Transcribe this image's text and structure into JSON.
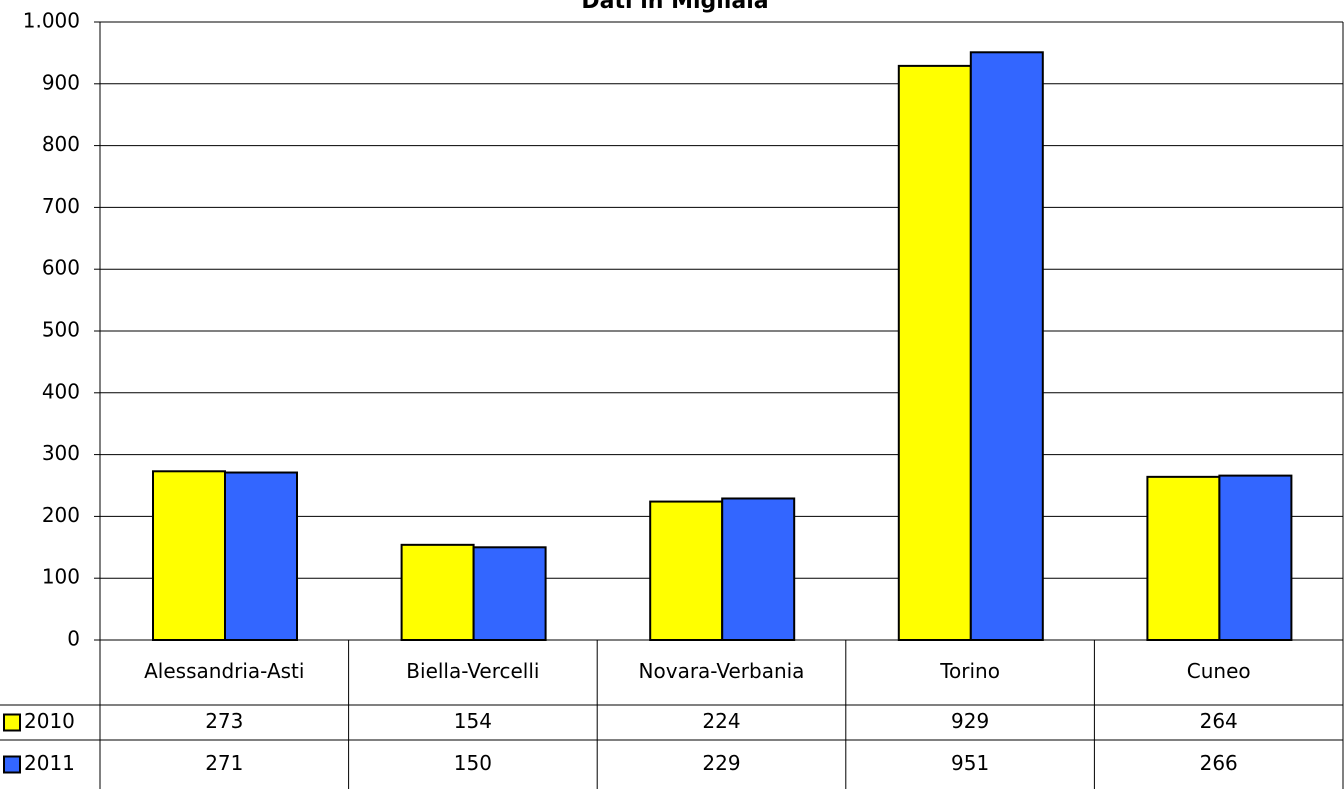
{
  "chart_data": {
    "type": "bar",
    "title": "Dati in Migliaia",
    "categories": [
      "Alessandria-Asti",
      "Biella-Vercelli",
      "Novara-Verbania",
      "Torino",
      "Cuneo"
    ],
    "series": [
      {
        "name": "2010",
        "color": "#ffff00",
        "values": [
          273,
          154,
          224,
          929,
          264
        ]
      },
      {
        "name": "2011",
        "color": "#3366ff",
        "values": [
          271,
          150,
          229,
          951,
          266
        ]
      }
    ],
    "ylim": [
      0,
      1000
    ],
    "yticks": [
      0,
      100,
      200,
      300,
      400,
      500,
      600,
      700,
      800,
      900,
      {
        "value": 1000,
        "label": "1.000"
      }
    ],
    "grid": true
  }
}
